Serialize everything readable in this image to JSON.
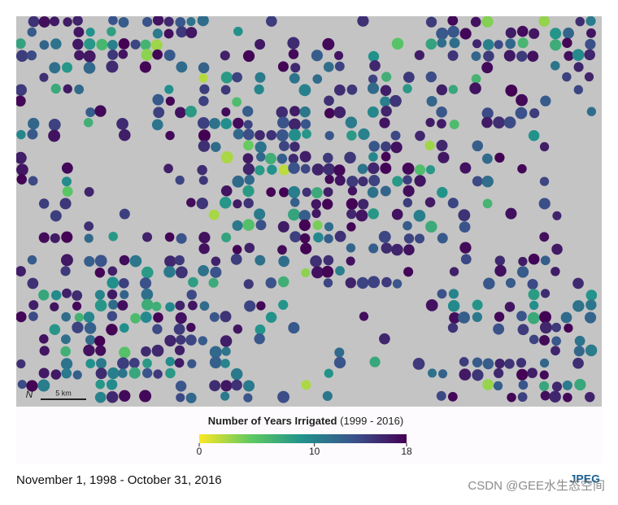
{
  "map": {
    "north": "N",
    "scale_bar": "5 km",
    "legend": {
      "title": "Number of Years Irrigated",
      "subtitle": "(1999 - 2016)",
      "range": [
        0,
        18
      ],
      "ticks": [
        0,
        10,
        18
      ],
      "colors": [
        "#fde725",
        "#5ec962",
        "#21918c",
        "#3b528b",
        "#440154"
      ]
    }
  },
  "caption": "November 1, 1998 - October 31, 2016",
  "credit": "JPEG",
  "watermark": "CSDN @GEE水生态空间"
}
